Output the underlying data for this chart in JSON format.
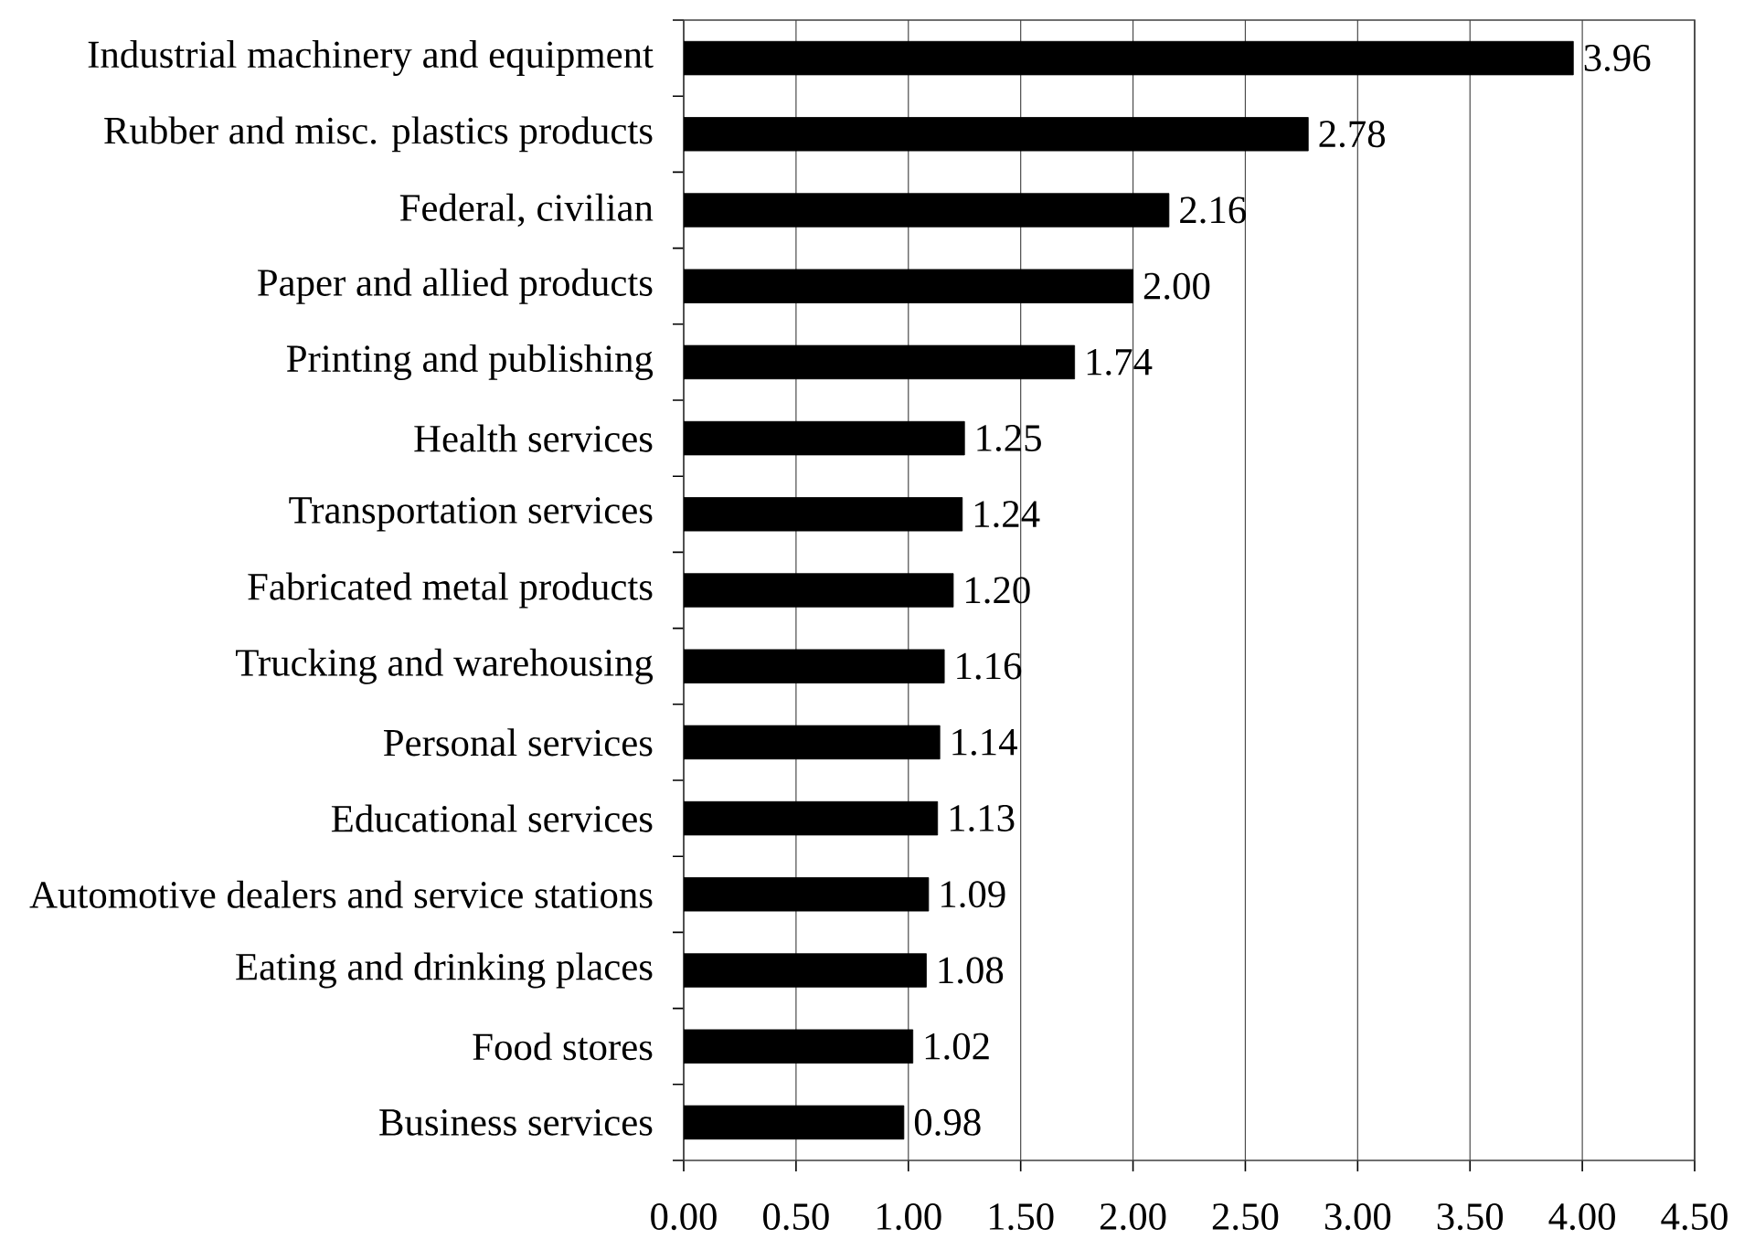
{
  "chart_data": {
    "type": "bar",
    "orientation": "horizontal",
    "categories": [
      "Industrial machinery and equipment",
      "Rubber and misc. plastics products",
      "Federal, civilian",
      "Paper and allied products",
      "Printing and publishing",
      "Health services",
      "Transportation services",
      "Fabricated metal products",
      "Trucking and warehousing",
      "Personal services",
      "Educational services",
      "Automotive dealers and service stations",
      "Eating and drinking places",
      "Food stores",
      "Business services"
    ],
    "values": [
      3.96,
      2.78,
      2.16,
      2.0,
      1.74,
      1.25,
      1.24,
      1.2,
      1.16,
      1.14,
      1.13,
      1.09,
      1.08,
      1.02,
      0.98
    ],
    "value_labels": [
      "3.96",
      "2.78",
      "2.16",
      "2.00",
      "1.74",
      "1.25",
      "1.24",
      "1.20",
      "1.16",
      "1.14",
      "1.13",
      "1.09",
      "1.08",
      "1.02",
      "0.98"
    ],
    "color": "#000000",
    "xlim": [
      0,
      4.5
    ],
    "xticks": [
      {
        "value": 0,
        "label": "0.00"
      },
      {
        "value": 0.5,
        "label": "0.50"
      },
      {
        "value": 1,
        "label": "1.00"
      },
      {
        "value": 1.5,
        "label": "1.50"
      },
      {
        "value": 2,
        "label": "2.00"
      },
      {
        "value": 2.5,
        "label": "2.50"
      },
      {
        "value": 3,
        "label": "3.00"
      },
      {
        "value": 3.5,
        "label": "3.50"
      },
      {
        "value": 4,
        "label": "4.00"
      },
      {
        "value": 4.5,
        "label": "4.50"
      }
    ],
    "grid": "x"
  }
}
